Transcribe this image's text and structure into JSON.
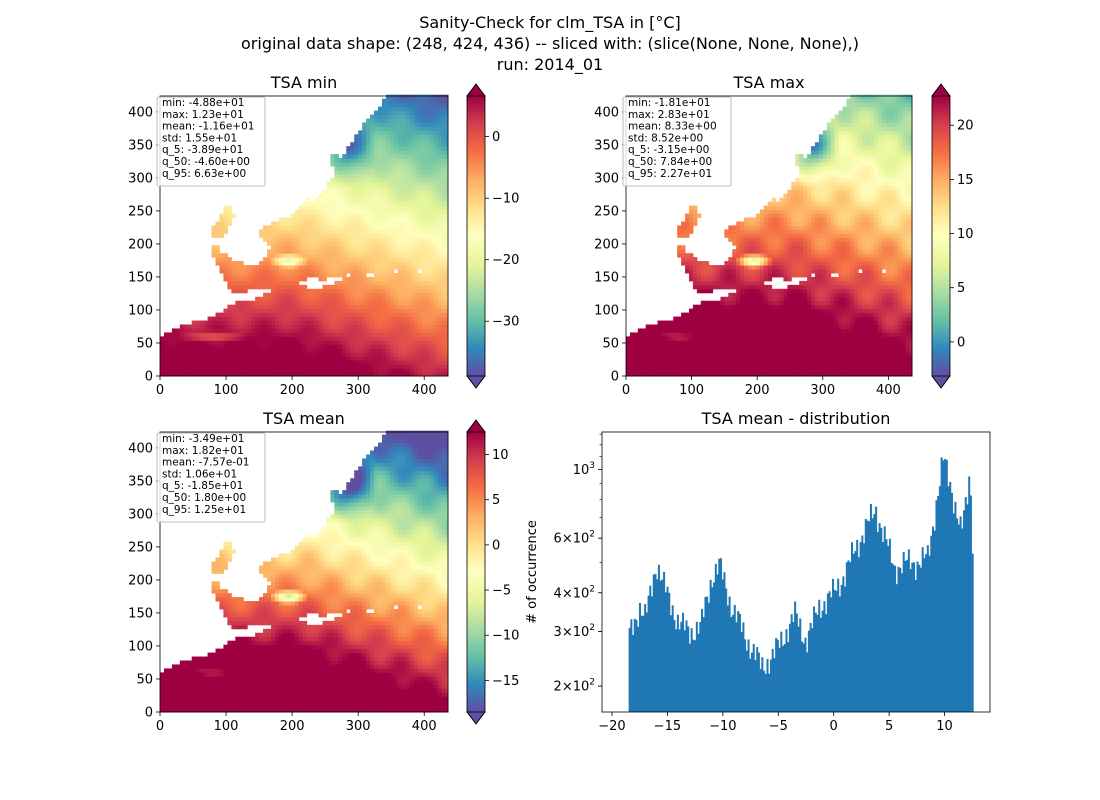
{
  "figure": {
    "title_lines": [
      "Sanity-Check for clm_TSA in [°C]",
      "original data shape: (248, 424, 436) -- sliced with: (slice(None, None, None),)",
      "run: 2014_01"
    ]
  },
  "chart_data": [
    {
      "type": "heatmap",
      "title": "TSA min",
      "colormap": "Spectral_r",
      "xlim": [
        0,
        436
      ],
      "ylim": [
        0,
        424
      ],
      "xticks": [
        0,
        100,
        200,
        300,
        400
      ],
      "yticks": [
        0,
        50,
        100,
        150,
        200,
        250,
        300,
        350,
        400
      ],
      "colorbar": {
        "min": -38.9,
        "max": 6.6,
        "ticks": [
          -30,
          -20,
          -10,
          0
        ],
        "extend": "both"
      },
      "stats": [
        "min: -4.88e+01",
        "max: 1.23e+01",
        "mean: -1.16e+01",
        "std: 1.55e+01",
        "q_5: -3.89e+01",
        "q_50: -4.60e+00",
        "q_95: 6.63e+00"
      ]
    },
    {
      "type": "heatmap",
      "title": "TSA max",
      "colormap": "Spectral_r",
      "xlim": [
        0,
        436
      ],
      "ylim": [
        0,
        424
      ],
      "xticks": [
        0,
        100,
        200,
        300,
        400
      ],
      "yticks": [
        0,
        50,
        100,
        150,
        200,
        250,
        300,
        350,
        400
      ],
      "colorbar": {
        "min": -3.15,
        "max": 22.7,
        "ticks": [
          0,
          5,
          10,
          15,
          20
        ],
        "extend": "both"
      },
      "stats": [
        "min: -1.81e+01",
        "max: 2.83e+01",
        "mean: 8.33e+00",
        "std: 8.52e+00",
        "q_5: -3.15e+00",
        "q_50: 7.84e+00",
        "q_95: 2.27e+01"
      ]
    },
    {
      "type": "heatmap",
      "title": "TSA mean",
      "colormap": "Spectral_r",
      "xlim": [
        0,
        436
      ],
      "ylim": [
        0,
        424
      ],
      "xticks": [
        0,
        100,
        200,
        300,
        400
      ],
      "yticks": [
        0,
        50,
        100,
        150,
        200,
        250,
        300,
        350,
        400
      ],
      "colorbar": {
        "min": -18.5,
        "max": 12.5,
        "ticks": [
          -15,
          -10,
          -5,
          0,
          5,
          10
        ],
        "extend": "both"
      },
      "stats": [
        "min: -3.49e+01",
        "max: 1.82e+01",
        "mean: -7.57e-01",
        "std: 1.06e+01",
        "q_5: -1.85e+01",
        "q_50: 1.80e+00",
        "q_95: 1.25e+01"
      ]
    },
    {
      "type": "bar",
      "title": "TSA mean - distribution",
      "ylabel": "# of occurrence",
      "yscale": "log",
      "xlim": [
        -20.9,
        14.1
      ],
      "ylim": [
        165,
        1320
      ],
      "xticks": [
        -20,
        -15,
        -10,
        -5,
        0,
        5,
        10
      ],
      "yticks": [
        {
          "value": 200,
          "mant": "2",
          "exp": "2"
        },
        {
          "value": 300,
          "mant": "3",
          "exp": "2"
        },
        {
          "value": 400,
          "mant": "4",
          "exp": "2"
        },
        {
          "value": 600,
          "mant": "6",
          "exp": "2"
        },
        {
          "value": 1000,
          "mant": "",
          "exp": "3"
        }
      ],
      "color": "#1f77b4",
      "anchors": [
        [
          -18.5,
          290
        ],
        [
          -17.5,
          360
        ],
        [
          -17.0,
          330
        ],
        [
          -16.0,
          500
        ],
        [
          -15.3,
          420
        ],
        [
          -14.0,
          320
        ],
        [
          -13.0,
          300
        ],
        [
          -12.0,
          310
        ],
        [
          -11.0,
          450
        ],
        [
          -10.3,
          490
        ],
        [
          -9.3,
          370
        ],
        [
          -8.0,
          290
        ],
        [
          -7.0,
          250
        ],
        [
          -6.5,
          230
        ],
        [
          -5.5,
          250
        ],
        [
          -4.5,
          290
        ],
        [
          -3.5,
          340
        ],
        [
          -2.5,
          280
        ],
        [
          -1.3,
          360
        ],
        [
          0.0,
          400
        ],
        [
          1.0,
          460
        ],
        [
          2.0,
          560
        ],
        [
          3.0,
          660
        ],
        [
          3.8,
          740
        ],
        [
          4.5,
          620
        ],
        [
          5.5,
          480
        ],
        [
          6.5,
          500
        ],
        [
          7.5,
          500
        ],
        [
          8.5,
          520
        ],
        [
          9.3,
          800
        ],
        [
          9.9,
          1080
        ],
        [
          10.7,
          850
        ],
        [
          11.5,
          620
        ],
        [
          12.0,
          800
        ],
        [
          12.3,
          1000
        ],
        [
          12.6,
          500
        ]
      ]
    }
  ]
}
